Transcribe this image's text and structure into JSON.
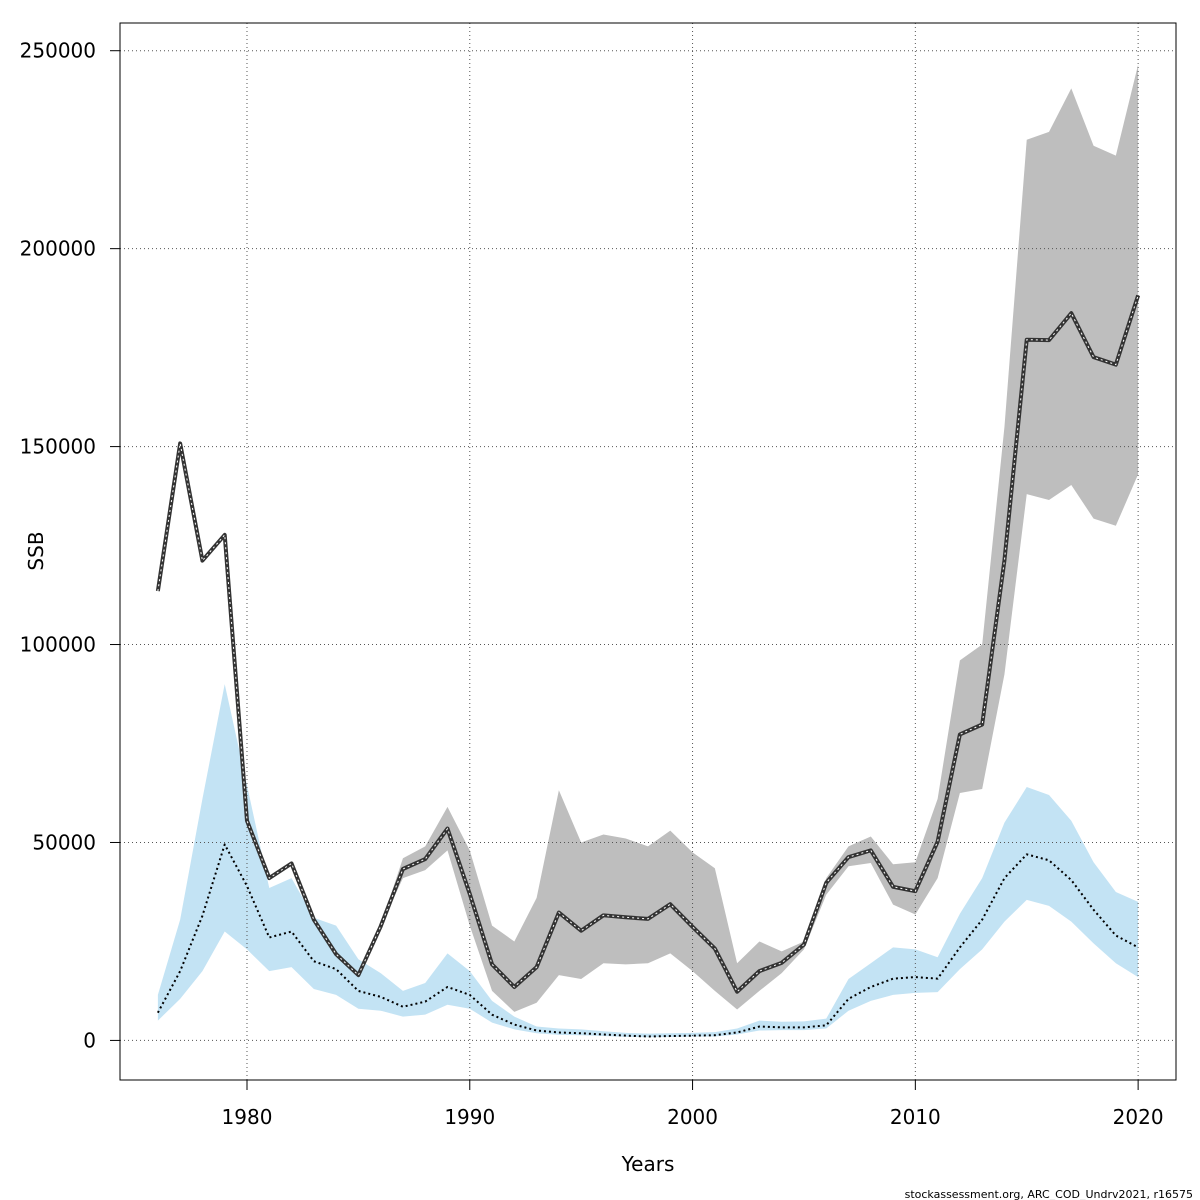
{
  "chart_data": {
    "type": "line",
    "xlabel": "Years",
    "ylabel": "SSB",
    "xlim": [
      1974.3,
      2021.7
    ],
    "ylim": [
      -10000,
      257000
    ],
    "xticks": [
      1980,
      1990,
      2000,
      2010,
      2020
    ],
    "yticks": [
      0,
      50000,
      100000,
      150000,
      200000,
      250000
    ],
    "grid": true,
    "colors": {
      "upper_band": "#bebebe",
      "lower_band": "#c3e3f4",
      "line": "#000000",
      "grid": "#555555"
    },
    "series": [
      {
        "years": [
          1976,
          1977,
          1978,
          1979,
          1980,
          1981,
          1982,
          1983,
          1984,
          1985,
          1986,
          1987,
          1988,
          1989,
          1990,
          1991,
          1992,
          1993,
          1994,
          1995,
          1996,
          1997,
          1998,
          1999,
          2000,
          2001,
          2002,
          2003,
          2004,
          2005,
          2006,
          2007,
          2008,
          2009,
          2010,
          2011,
          2012,
          2013,
          2014,
          2015,
          2016,
          2017,
          2018,
          2019,
          2020
        ],
        "values": [
          113500,
          150800,
          121200,
          127700,
          55500,
          41000,
          44700,
          30500,
          21800,
          16500,
          28800,
          43300,
          45800,
          53500,
          37000,
          19200,
          13500,
          18500,
          32300,
          27700,
          31600,
          31100,
          30700,
          34400,
          28700,
          23200,
          12300,
          17500,
          19600,
          24200,
          39800,
          46300,
          48000,
          38800,
          37700,
          50200,
          77300,
          79800,
          121300,
          177000,
          176900,
          183700,
          172600,
          170700,
          188200
        ],
        "lower": [
          113500,
          150800,
          121200,
          127700,
          55500,
          41000,
          44700,
          30500,
          21800,
          16500,
          28800,
          41000,
          43000,
          48000,
          29000,
          12500,
          7200,
          9500,
          16500,
          15500,
          19500,
          19200,
          19500,
          22000,
          17500,
          12500,
          7800,
          12500,
          17000,
          23000,
          36800,
          44000,
          44800,
          34300,
          31800,
          41000,
          62500,
          63500,
          92500,
          138000,
          136500,
          140300,
          131800,
          130000,
          143000
        ],
        "upper": [
          113500,
          150800,
          121200,
          127700,
          55500,
          41000,
          44700,
          30500,
          21800,
          16500,
          29000,
          46000,
          49000,
          59000,
          48000,
          29000,
          25000,
          36000,
          63200,
          50000,
          52000,
          51000,
          49000,
          53000,
          47500,
          43500,
          19500,
          25000,
          22500,
          25000,
          41000,
          49000,
          51500,
          44500,
          45000,
          61000,
          96000,
          100000,
          155000,
          227500,
          229500,
          240500,
          226000,
          223500,
          246500
        ]
      },
      {
        "years": [
          1976,
          1977,
          1978,
          1979,
          1980,
          1981,
          1982,
          1983,
          1984,
          1985,
          1986,
          1987,
          1988,
          1989,
          1990,
          1991,
          1992,
          1993,
          1994,
          1995,
          1996,
          1997,
          1998,
          1999,
          2000,
          2001,
          2002,
          2003,
          2004,
          2005,
          2006,
          2007,
          2008,
          2009,
          2010,
          2011,
          2012,
          2013,
          2014,
          2015,
          2016,
          2017,
          2018,
          2019,
          2020
        ],
        "values": [
          7000,
          17500,
          31500,
          49500,
          39000,
          26000,
          27500,
          20000,
          18000,
          12500,
          11000,
          8500,
          9800,
          13500,
          11500,
          6500,
          4000,
          2500,
          2000,
          1800,
          1500,
          1200,
          1000,
          1100,
          1200,
          1300,
          2000,
          3500,
          3300,
          3300,
          3800,
          10500,
          13500,
          15600,
          16000,
          15600,
          23500,
          30500,
          41000,
          47000,
          45500,
          40500,
          33000,
          26500,
          23500
        ],
        "lower": [
          5000,
          10500,
          17500,
          27500,
          23000,
          17500,
          18500,
          13000,
          11500,
          8000,
          7500,
          6000,
          6500,
          9000,
          8000,
          4500,
          2800,
          1800,
          1400,
          1300,
          1100,
          900,
          800,
          850,
          950,
          1000,
          1500,
          2500,
          2600,
          2600,
          3000,
          7500,
          10000,
          11500,
          12000,
          12200,
          18000,
          23000,
          30000,
          35500,
          34000,
          30000,
          24500,
          19500,
          16000
        ],
        "upper": [
          11500,
          30500,
          61000,
          90000,
          64500,
          38500,
          41000,
          31000,
          29000,
          20500,
          17000,
          12500,
          14500,
          22000,
          17500,
          10000,
          6000,
          3500,
          3000,
          2800,
          2300,
          1900,
          1700,
          1800,
          1900,
          2100,
          3000,
          5000,
          4700,
          4800,
          5500,
          15500,
          19500,
          23500,
          23000,
          21000,
          32000,
          41000,
          55000,
          64000,
          62000,
          55500,
          45000,
          37500,
          35000
        ]
      }
    ]
  },
  "footer_text": "stockassessment.org, ARC_COD_Undrv2021, r16575"
}
